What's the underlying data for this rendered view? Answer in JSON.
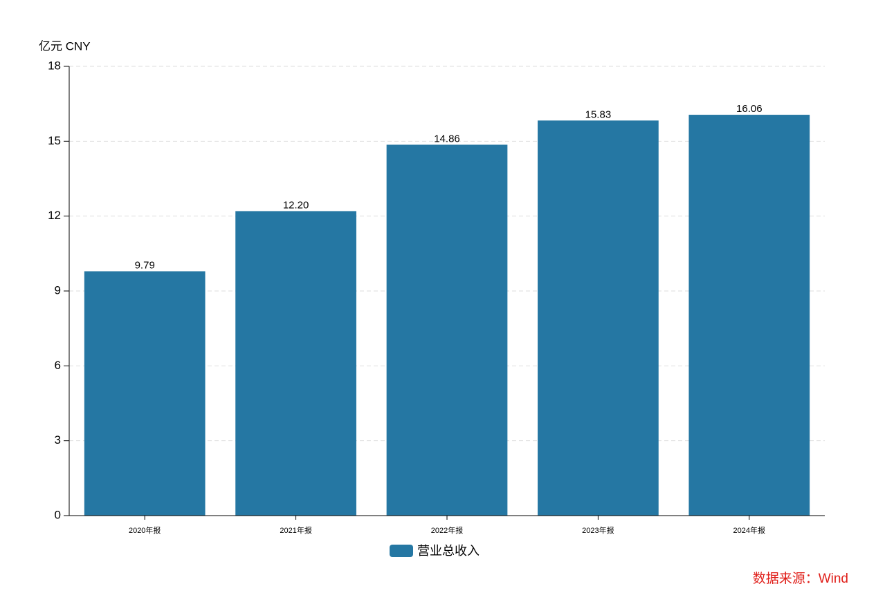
{
  "chart_data": {
    "type": "bar",
    "y_label": "亿元  CNY",
    "categories": [
      "2020年报",
      "2021年报",
      "2022年报",
      "2023年报",
      "2024年报"
    ],
    "series": [
      {
        "name": "营业总收入",
        "color": "#2577a3",
        "values": [
          9.79,
          12.2,
          14.86,
          15.83,
          16.06
        ],
        "value_labels": [
          "9.79",
          "12.20",
          "14.86",
          "15.83",
          "16.06"
        ]
      }
    ],
    "ylim": [
      0,
      18
    ],
    "yticks": [
      0,
      3,
      6,
      9,
      12,
      15,
      18
    ],
    "grid": true,
    "source": "数据来源：Wind"
  }
}
